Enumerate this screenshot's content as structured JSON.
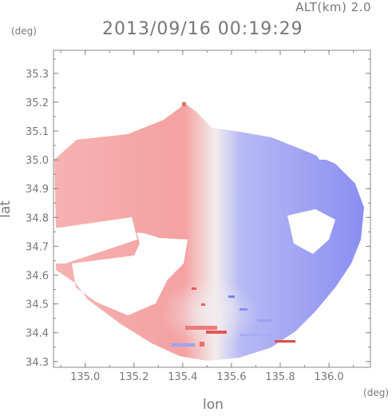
{
  "header": {
    "altitude_label": "ALT(km) 2.0",
    "timestamp": "2013/09/16 00:19:29"
  },
  "chart_data": {
    "type": "heatmap",
    "title": "2013/09/16 00:19:29",
    "xlabel": "lon",
    "ylabel": "lat",
    "x_unit": "(deg)",
    "y_unit": "(deg)",
    "xlim": [
      134.87,
      136.17
    ],
    "ylim": [
      34.28,
      35.38
    ],
    "x_ticks": [
      135.0,
      135.2,
      135.4,
      135.6,
      135.8,
      136.0
    ],
    "x_tick_labels": [
      "135.0",
      "135.2",
      "135.4",
      "135.6",
      "135.8",
      "136.0"
    ],
    "y_ticks": [
      34.3,
      34.4,
      34.5,
      34.6,
      34.7,
      34.8,
      34.9,
      35.0,
      35.1,
      35.2,
      35.3
    ],
    "y_tick_labels": [
      "34.3",
      "34.4",
      "34.5",
      "34.6",
      "34.7",
      "34.8",
      "34.9",
      "35.0",
      "35.1",
      "35.2",
      "35.3"
    ],
    "grid": false,
    "colors": {
      "approaching": "#7f84ef",
      "receding": "#f4a3a3",
      "neutral": "#f2eeee",
      "strong_positive": "#e84545",
      "frame": "#888888"
    }
  }
}
